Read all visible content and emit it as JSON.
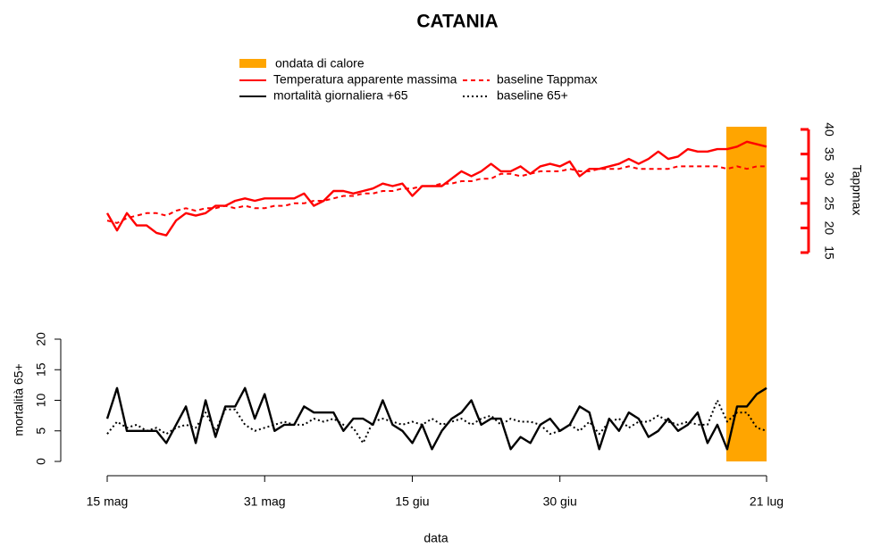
{
  "chart_data": {
    "type": "line",
    "title": "CATANIA",
    "xlabel": "data",
    "ylabel": "mortalità 65+",
    "y2label": "Tappmax",
    "x": [
      "15 mag",
      "16 mag",
      "17 mag",
      "18 mag",
      "19 mag",
      "20 mag",
      "21 mag",
      "22 mag",
      "23 mag",
      "24 mag",
      "25 mag",
      "26 mag",
      "27 mag",
      "28 mag",
      "29 mag",
      "30 mag",
      "31 mag",
      "1 giu",
      "2 giu",
      "3 giu",
      "4 giu",
      "5 giu",
      "6 giu",
      "7 giu",
      "8 giu",
      "9 giu",
      "10 giu",
      "11 giu",
      "12 giu",
      "13 giu",
      "14 giu",
      "15 giu",
      "16 giu",
      "17 giu",
      "18 giu",
      "19 giu",
      "20 giu",
      "21 giu",
      "22 giu",
      "23 giu",
      "24 giu",
      "25 giu",
      "26 giu",
      "27 giu",
      "28 giu",
      "29 giu",
      "30 giu",
      "1 lug",
      "2 lug",
      "3 lug",
      "4 lug",
      "5 lug",
      "6 lug",
      "7 lug",
      "8 lug",
      "9 lug",
      "10 lug",
      "11 lug",
      "12 lug",
      "13 lug",
      "14 lug",
      "15 lug",
      "16 lug",
      "17 lug",
      "18 lug",
      "19 lug",
      "20 lug",
      "21 lug"
    ],
    "xticks": [
      "15 mag",
      "31 mag",
      "15 giu",
      "30 giu",
      "21 lug"
    ],
    "ylim": [
      0,
      20
    ],
    "yticks": [
      0,
      5,
      10,
      15,
      20
    ],
    "y2lim": [
      15,
      40
    ],
    "y2ticks": [
      15,
      20,
      25,
      30,
      35,
      40
    ],
    "y2color": "#ff0000",
    "heatwave": {
      "name": "ondata di calore",
      "color": "#ffa500",
      "start": "17 lug",
      "end": "21 lug"
    },
    "series": [
      {
        "name": "Temperatura apparente massima",
        "color": "#ff0000",
        "dash": "solid",
        "axis": "y2",
        "values": [
          23,
          19.5,
          23,
          20.5,
          20.5,
          19,
          18.5,
          21.5,
          23,
          22.5,
          23,
          24.5,
          24.5,
          25.5,
          26,
          25.5,
          26,
          26,
          26,
          26,
          27,
          24.5,
          25.5,
          27.5,
          27.5,
          27,
          27.5,
          28,
          29,
          28.5,
          29,
          26.5,
          28.5,
          28.5,
          28.5,
          30,
          31.5,
          30.5,
          31.5,
          33,
          31.5,
          31.5,
          32.5,
          31,
          32.5,
          33,
          32.5,
          33.5,
          30.5,
          32,
          32,
          32.5,
          33,
          34,
          33,
          34,
          35.5,
          34,
          34.5,
          36,
          35.5,
          35.5,
          36,
          36,
          36.5,
          37.5,
          37,
          36.5
        ]
      },
      {
        "name": "baseline Tappmax",
        "color": "#ff0000",
        "dash": "dashed",
        "axis": "y2",
        "values": [
          21.5,
          21,
          22,
          22.5,
          23,
          23,
          22.5,
          23.5,
          24,
          23.5,
          24,
          24,
          24.5,
          24,
          24.5,
          24,
          24,
          24.5,
          24.5,
          25,
          25,
          25.5,
          25.5,
          26,
          26.5,
          26.5,
          27,
          27,
          27.5,
          27.5,
          28,
          28,
          28.5,
          28.5,
          29,
          29,
          29.5,
          29.5,
          30,
          30,
          31,
          31,
          30.5,
          31,
          31.5,
          31.5,
          31.5,
          32,
          31.5,
          31.5,
          32,
          32,
          32,
          32.5,
          32,
          32,
          32,
          32,
          32.5,
          32.5,
          32.5,
          32.5,
          32.5,
          32,
          32.5,
          32,
          32.5,
          32.5
        ]
      },
      {
        "name": "mortalità giornaliera +65",
        "color": "#000000",
        "dash": "solid",
        "values": [
          7,
          12,
          5,
          5,
          5,
          5,
          3,
          6,
          9,
          3,
          10,
          4,
          9,
          9,
          12,
          7,
          11,
          5,
          6,
          6,
          9,
          8,
          8,
          8,
          5,
          7,
          7,
          6,
          10,
          6,
          5,
          3,
          6,
          2,
          5,
          7,
          8,
          10,
          6,
          7,
          7,
          2,
          4,
          3,
          6,
          7,
          5,
          6,
          9,
          8,
          2,
          7,
          5,
          8,
          7,
          4,
          5,
          7,
          5,
          6,
          8,
          3,
          6,
          2,
          9,
          9,
          11,
          12
        ]
      },
      {
        "name": "baseline 65+",
        "color": "#000000",
        "dash": "dotted",
        "values": [
          4.5,
          6.5,
          5.5,
          6,
          5,
          5.5,
          4.5,
          5.5,
          6,
          5.5,
          8,
          5,
          8.5,
          8.5,
          6,
          5,
          5.5,
          6,
          6.5,
          6,
          6,
          7,
          6.5,
          7,
          6,
          5.5,
          3,
          6.5,
          7,
          6.5,
          6,
          6.5,
          6,
          7,
          6,
          6.5,
          7,
          6,
          7,
          7.5,
          6,
          7,
          6.5,
          6.5,
          6,
          4.5,
          5,
          6,
          5,
          6.5,
          4.5,
          6.5,
          7,
          5.5,
          6.5,
          6.5,
          7.5,
          6.5,
          6,
          6.5,
          6,
          6,
          10,
          6.5,
          8,
          8,
          5.5,
          5
        ]
      }
    ]
  }
}
